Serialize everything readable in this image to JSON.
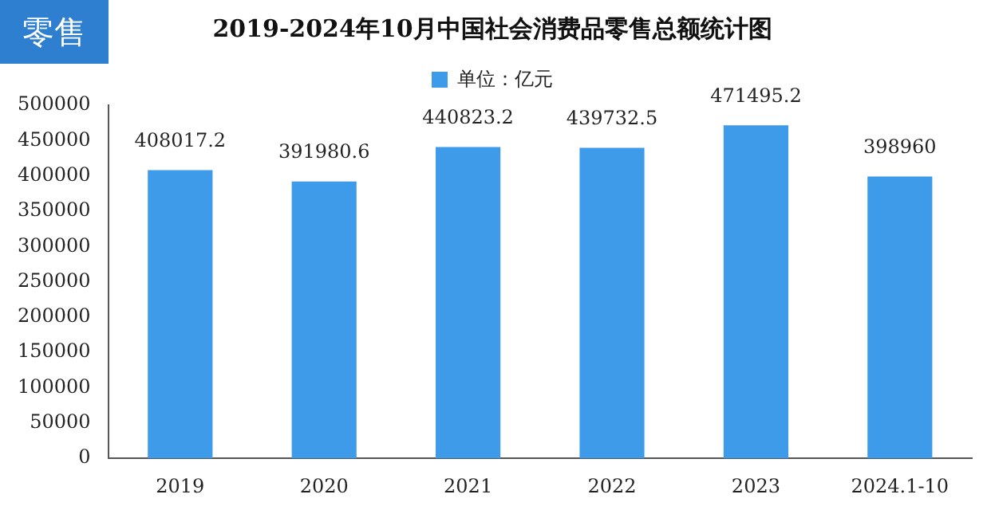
{
  "chart_data": {
    "type": "bar",
    "title": "2019-2024年10月中国社会消费品零售总额统计图",
    "annotations": [
      "零售"
    ],
    "categories": [
      "2019",
      "2020",
      "2021",
      "2022",
      "2023",
      "2024.1-10"
    ],
    "series": [
      {
        "name": "单位：亿元",
        "color": "#3d9be9",
        "values": [
          408017.2,
          391980.6,
          440823.2,
          439732.5,
          471495.2,
          398960
        ]
      }
    ],
    "ylim": [
      0,
      500000
    ],
    "yticks": [
      0,
      50000,
      100000,
      150000,
      200000,
      250000,
      300000,
      350000,
      400000,
      450000,
      500000
    ],
    "grid": false,
    "legend": "top",
    "data_labels": true
  }
}
